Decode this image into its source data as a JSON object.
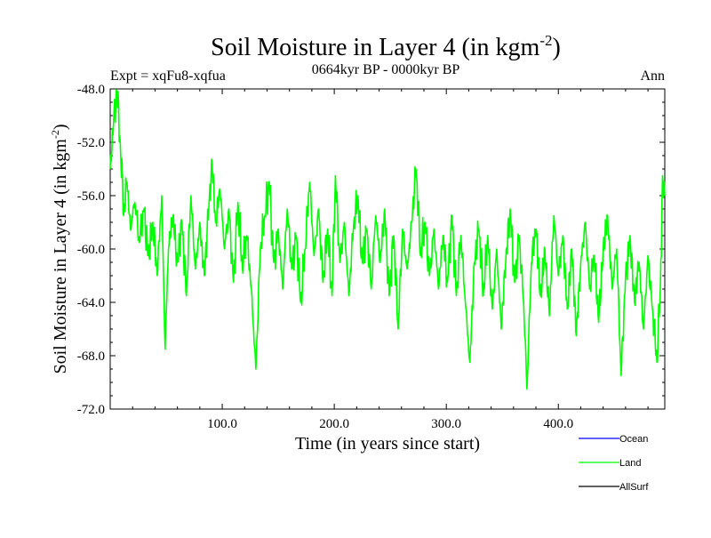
{
  "chart_data": {
    "type": "line",
    "title": "Soil Moisture in Layer 4 (in kgm",
    "title_sup": "-2",
    "title_close": ")",
    "subtitle": "0664kyr BP - 0000kyr BP",
    "left_label": "Expt = xqFu8-xqfua",
    "right_label": "Ann",
    "xlabel": "Time (in years since start)",
    "ylabel": "Soil Moisture in Layer 4 (in kgm",
    "ylabel_sup": "-2",
    "ylabel_close": ")",
    "xlim": [
      0,
      495
    ],
    "ylim": [
      -72.0,
      -48.0
    ],
    "x_ticks": [
      100,
      200,
      300,
      400
    ],
    "x_tick_labels": [
      "100.0",
      "200.0",
      "300.0",
      "400.0"
    ],
    "y_ticks": [
      -48,
      -52,
      -56,
      -60,
      -64,
      -68,
      -72
    ],
    "y_tick_labels": [
      "-48.0",
      "-52.0",
      "-56.0",
      "-60.0",
      "-64.0",
      "-68.0",
      "-72.0"
    ],
    "legend": [
      {
        "name": "Ocean",
        "color": "#0000ff"
      },
      {
        "name": "Land",
        "color": "#00ff00"
      },
      {
        "name": "AllSurf",
        "color": "#000000"
      }
    ],
    "series": [
      {
        "name": "Land",
        "color": "#00ff00",
        "anchors": [
          [
            0,
            -54.0
          ],
          [
            3,
            -50.5
          ],
          [
            6,
            -48.2
          ],
          [
            9,
            -52.0
          ],
          [
            12,
            -57.5
          ],
          [
            15,
            -55.0
          ],
          [
            18,
            -58.5
          ],
          [
            22,
            -56.5
          ],
          [
            26,
            -59.5
          ],
          [
            30,
            -57.0
          ],
          [
            34,
            -60.5
          ],
          [
            38,
            -58.0
          ],
          [
            42,
            -62.0
          ],
          [
            46,
            -56.0
          ],
          [
            49,
            -67.5
          ],
          [
            52,
            -60.0
          ],
          [
            56,
            -57.5
          ],
          [
            60,
            -61.0
          ],
          [
            64,
            -58.0
          ],
          [
            68,
            -63.5
          ],
          [
            72,
            -56.0
          ],
          [
            76,
            -61.5
          ],
          [
            80,
            -58.0
          ],
          [
            84,
            -62.0
          ],
          [
            88,
            -57.0
          ],
          [
            91,
            -53.5
          ],
          [
            94,
            -58.0
          ],
          [
            98,
            -55.5
          ],
          [
            102,
            -60.0
          ],
          [
            106,
            -57.0
          ],
          [
            110,
            -62.5
          ],
          [
            114,
            -56.5
          ],
          [
            118,
            -61.5
          ],
          [
            122,
            -59.0
          ],
          [
            126,
            -63.0
          ],
          [
            130,
            -69.0
          ],
          [
            134,
            -60.0
          ],
          [
            138,
            -57.5
          ],
          [
            142,
            -55.0
          ],
          [
            146,
            -61.0
          ],
          [
            150,
            -58.5
          ],
          [
            154,
            -63.0
          ],
          [
            158,
            -57.0
          ],
          [
            162,
            -61.5
          ],
          [
            166,
            -59.0
          ],
          [
            170,
            -64.0
          ],
          [
            174,
            -60.0
          ],
          [
            178,
            -55.0
          ],
          [
            182,
            -60.5
          ],
          [
            186,
            -57.0
          ],
          [
            190,
            -62.5
          ],
          [
            194,
            -58.5
          ],
          [
            198,
            -63.5
          ],
          [
            201,
            -54.5
          ],
          [
            205,
            -61.0
          ],
          [
            209,
            -58.0
          ],
          [
            213,
            -63.5
          ],
          [
            217,
            -58.5
          ],
          [
            221,
            -56.0
          ],
          [
            225,
            -61.0
          ],
          [
            229,
            -58.5
          ],
          [
            233,
            -63.0
          ],
          [
            237,
            -57.5
          ],
          [
            241,
            -61.0
          ],
          [
            245,
            -57.0
          ],
          [
            249,
            -63.5
          ],
          [
            253,
            -59.0
          ],
          [
            257,
            -66.0
          ],
          [
            261,
            -58.5
          ],
          [
            265,
            -61.5
          ],
          [
            269,
            -58.0
          ],
          [
            273,
            -54.0
          ],
          [
            277,
            -60.5
          ],
          [
            281,
            -58.0
          ],
          [
            285,
            -62.0
          ],
          [
            289,
            -58.5
          ],
          [
            293,
            -63.0
          ],
          [
            297,
            -59.0
          ],
          [
            301,
            -62.5
          ],
          [
            305,
            -57.5
          ],
          [
            309,
            -63.5
          ],
          [
            313,
            -59.0
          ],
          [
            317,
            -64.0
          ],
          [
            321,
            -68.5
          ],
          [
            325,
            -61.0
          ],
          [
            329,
            -58.5
          ],
          [
            333,
            -63.5
          ],
          [
            337,
            -59.0
          ],
          [
            341,
            -64.5
          ],
          [
            345,
            -60.0
          ],
          [
            349,
            -66.0
          ],
          [
            353,
            -61.0
          ],
          [
            357,
            -57.0
          ],
          [
            361,
            -62.5
          ],
          [
            365,
            -59.0
          ],
          [
            369,
            -64.0
          ],
          [
            372,
            -70.5
          ],
          [
            376,
            -61.0
          ],
          [
            380,
            -58.5
          ],
          [
            384,
            -63.5
          ],
          [
            388,
            -60.0
          ],
          [
            392,
            -65.0
          ],
          [
            396,
            -57.5
          ],
          [
            400,
            -62.0
          ],
          [
            404,
            -59.0
          ],
          [
            408,
            -64.5
          ],
          [
            412,
            -60.0
          ],
          [
            416,
            -66.5
          ],
          [
            420,
            -61.0
          ],
          [
            424,
            -58.0
          ],
          [
            428,
            -63.0
          ],
          [
            432,
            -60.5
          ],
          [
            436,
            -65.5
          ],
          [
            440,
            -60.0
          ],
          [
            444,
            -57.5
          ],
          [
            448,
            -63.0
          ],
          [
            452,
            -60.0
          ],
          [
            456,
            -69.5
          ],
          [
            460,
            -62.0
          ],
          [
            464,
            -59.0
          ],
          [
            468,
            -64.0
          ],
          [
            472,
            -61.0
          ],
          [
            476,
            -66.0
          ],
          [
            480,
            -60.5
          ],
          [
            484,
            -64.5
          ],
          [
            488,
            -68.5
          ],
          [
            491,
            -63.0
          ],
          [
            493,
            -54.5
          ],
          [
            495,
            -56.0
          ]
        ]
      }
    ]
  }
}
